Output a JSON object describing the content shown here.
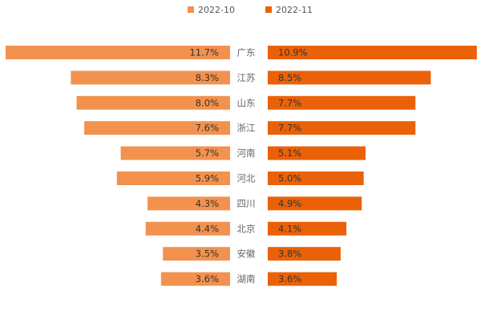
{
  "chart_data": {
    "type": "bar",
    "orientation": "horizontal-butterfly",
    "categories": [
      "广东",
      "江苏",
      "山东",
      "浙江",
      "河南",
      "河北",
      "四川",
      "北京",
      "安徽",
      "湖南"
    ],
    "series": [
      {
        "name": "2022-10",
        "color": "#F2924E",
        "side": "left",
        "values": [
          11.7,
          8.3,
          8.0,
          7.6,
          5.7,
          5.9,
          4.3,
          4.4,
          3.5,
          3.6
        ],
        "labels": [
          "11.7%",
          "8.3%",
          "8.0%",
          "7.6%",
          "5.7%",
          "5.9%",
          "4.3%",
          "4.4%",
          "3.5%",
          "3.6%"
        ]
      },
      {
        "name": "2022-11",
        "color": "#EA6108",
        "side": "right",
        "values": [
          10.9,
          8.5,
          7.7,
          7.7,
          5.1,
          5.0,
          4.9,
          4.1,
          3.8,
          3.6
        ],
        "labels": [
          "10.9%",
          "8.5%",
          "7.7%",
          "7.7%",
          "5.1%",
          "5.0%",
          "4.9%",
          "4.1%",
          "3.8%",
          "3.6%"
        ]
      }
    ],
    "unit": "%",
    "legend_position": "top-center",
    "grid": false,
    "xlim": [
      0,
      11.7
    ]
  }
}
